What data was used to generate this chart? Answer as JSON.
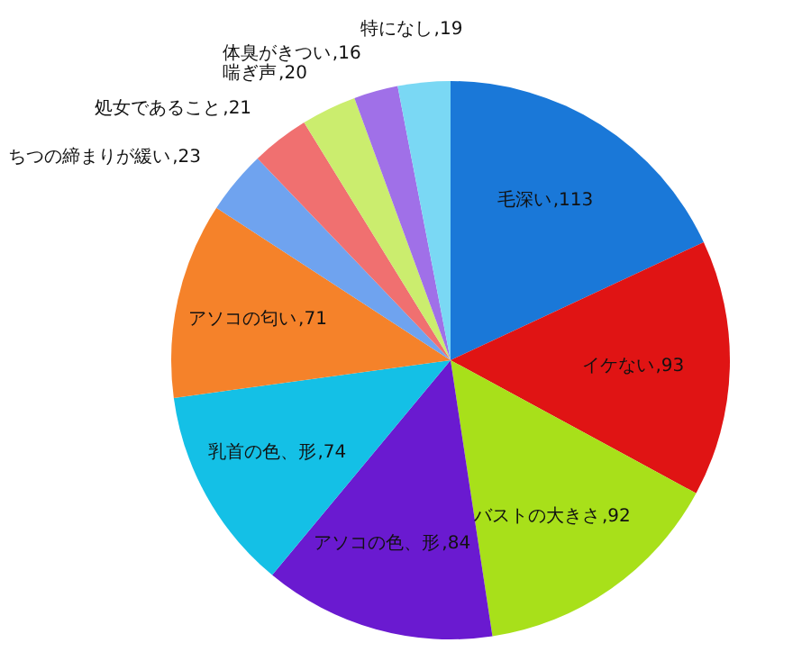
{
  "chart_data": {
    "type": "pie",
    "categories": [
      "毛深い",
      "イケない",
      "バストの大きさ",
      "アソコの色、形",
      "乳首の色、形",
      "アソコの匂い",
      "ちつの締まりが緩い",
      "処女であること",
      "喘ぎ声",
      "体臭がきつい",
      "特になし"
    ],
    "values": [
      113,
      93,
      92,
      84,
      74,
      71,
      23,
      21,
      20,
      16,
      19
    ],
    "colors": [
      "#1a78d8",
      "#e01414",
      "#a8e01a",
      "#6a1ad0",
      "#14c0e6",
      "#f5822a",
      "#6fa3ef",
      "#f07070",
      "#cbed6e",
      "#a070e8",
      "#7ad8f4"
    ],
    "value_labels": [
      ",113",
      ",93",
      ",92",
      ",84",
      ",74",
      ",71",
      ",23",
      ",21",
      ",20",
      ",16",
      ",19"
    ],
    "legend": false
  }
}
